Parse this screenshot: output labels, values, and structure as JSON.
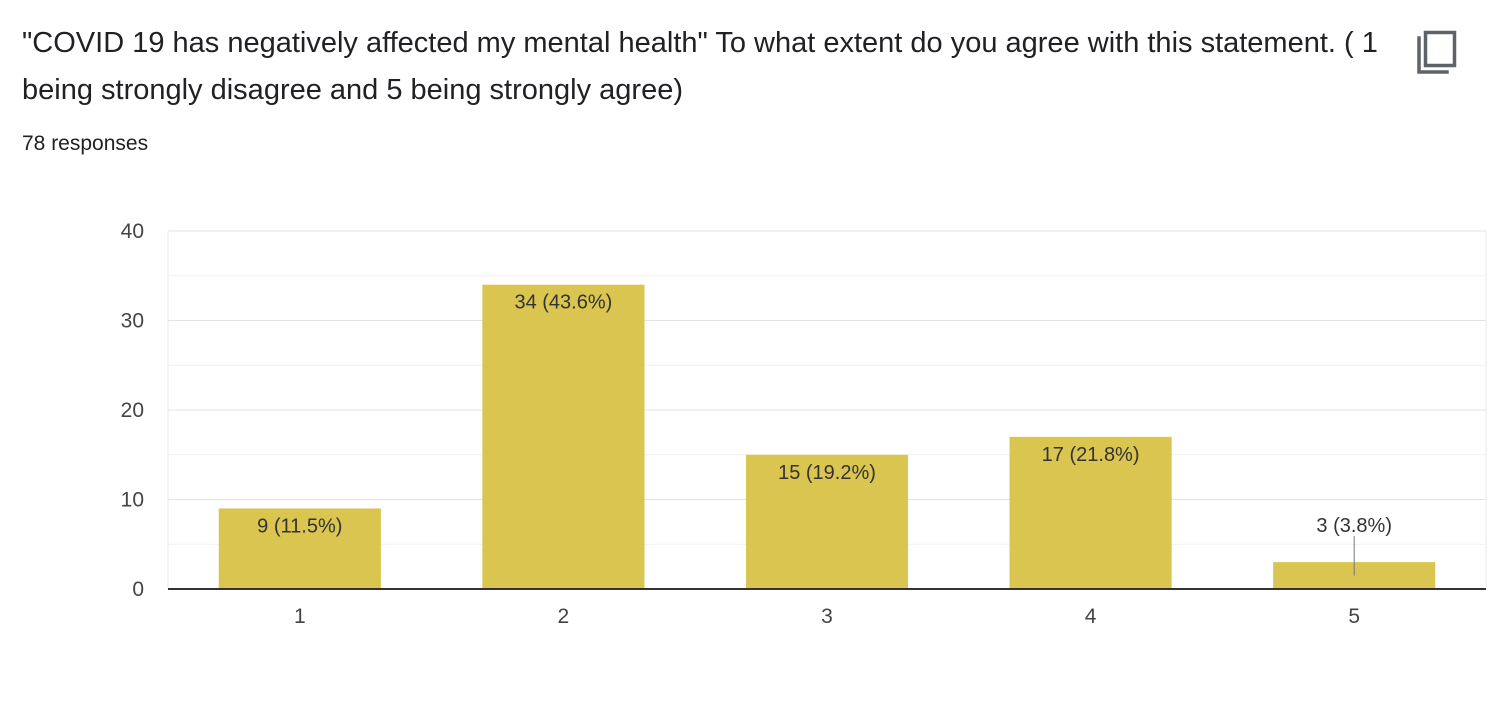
{
  "header": {
    "question": "\"COVID 19 has negatively affected my mental health\" To what extent do you agree with this statement. ( 1 being strongly disagree and 5 being strongly agree)",
    "responses_text": "78 responses",
    "copy_icon": "copy-icon"
  },
  "colors": {
    "bar": "#d9c550",
    "gridline": "#e8e8e8",
    "axis": "#333333"
  },
  "chart_data": {
    "type": "bar",
    "categories": [
      "1",
      "2",
      "3",
      "4",
      "5"
    ],
    "values": [
      9,
      34,
      15,
      17,
      3
    ],
    "data_labels": [
      "9 (11.5%)",
      "34 (43.6%)",
      "15 (19.2%)",
      "17 (21.8%)",
      "3 (3.8%)"
    ],
    "y_ticks": [
      "0",
      "10",
      "20",
      "30",
      "40"
    ],
    "ylim": [
      0,
      40
    ],
    "grid": true,
    "legend": "none",
    "title": "",
    "xlabel": "",
    "ylabel": ""
  }
}
